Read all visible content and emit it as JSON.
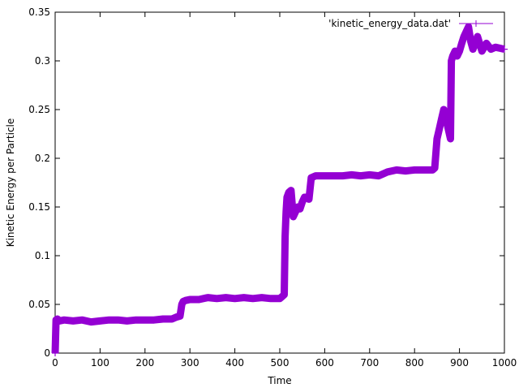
{
  "chart_data": {
    "type": "line",
    "xlabel": "Time",
    "ylabel": "Kinetic Energy per Particle",
    "xlim": [
      0,
      1000
    ],
    "ylim": [
      0,
      0.35
    ],
    "x_ticks": [
      "0",
      "100",
      "200",
      "300",
      "400",
      "500",
      "600",
      "700",
      "800",
      "900",
      "1000"
    ],
    "y_ticks": [
      "0",
      "0.05",
      "0.1",
      "0.15",
      "0.2",
      "0.25",
      "0.3",
      "0.35"
    ],
    "grid": false,
    "legend_position": "top-right",
    "series": [
      {
        "name": "'kinetic_energy_data.dat'",
        "color": "#9400d3",
        "marker": "plus",
        "x": [
          0,
          2,
          5,
          10,
          20,
          40,
          60,
          80,
          100,
          120,
          140,
          160,
          180,
          200,
          220,
          240,
          260,
          270,
          278,
          282,
          285,
          290,
          300,
          320,
          340,
          360,
          380,
          400,
          420,
          440,
          460,
          480,
          500,
          505,
          510,
          512,
          514,
          516,
          520,
          525,
          530,
          535,
          540,
          545,
          550,
          555,
          560,
          565,
          570,
          580,
          600,
          620,
          640,
          660,
          680,
          700,
          720,
          730,
          740,
          760,
          780,
          800,
          820,
          840,
          845,
          850,
          855,
          860,
          865,
          870,
          875,
          880,
          882,
          885,
          890,
          895,
          900,
          905,
          910,
          915,
          920,
          925,
          930,
          935,
          940,
          950,
          960,
          970,
          980,
          990,
          1000
        ],
        "y": [
          0.0,
          0.034,
          0.035,
          0.033,
          0.034,
          0.033,
          0.034,
          0.032,
          0.033,
          0.034,
          0.034,
          0.033,
          0.034,
          0.034,
          0.034,
          0.035,
          0.035,
          0.037,
          0.038,
          0.05,
          0.053,
          0.054,
          0.055,
          0.055,
          0.057,
          0.056,
          0.057,
          0.056,
          0.057,
          0.056,
          0.057,
          0.056,
          0.056,
          0.058,
          0.06,
          0.12,
          0.145,
          0.16,
          0.165,
          0.167,
          0.14,
          0.145,
          0.15,
          0.148,
          0.155,
          0.16,
          0.16,
          0.158,
          0.18,
          0.182,
          0.182,
          0.182,
          0.182,
          0.183,
          0.182,
          0.183,
          0.182,
          0.184,
          0.186,
          0.188,
          0.187,
          0.188,
          0.188,
          0.188,
          0.19,
          0.22,
          0.23,
          0.24,
          0.25,
          0.24,
          0.23,
          0.22,
          0.3,
          0.305,
          0.31,
          0.305,
          0.31,
          0.318,
          0.325,
          0.33,
          0.335,
          0.32,
          0.312,
          0.318,
          0.325,
          0.31,
          0.318,
          0.312,
          0.314,
          0.313,
          0.312
        ]
      }
    ]
  }
}
